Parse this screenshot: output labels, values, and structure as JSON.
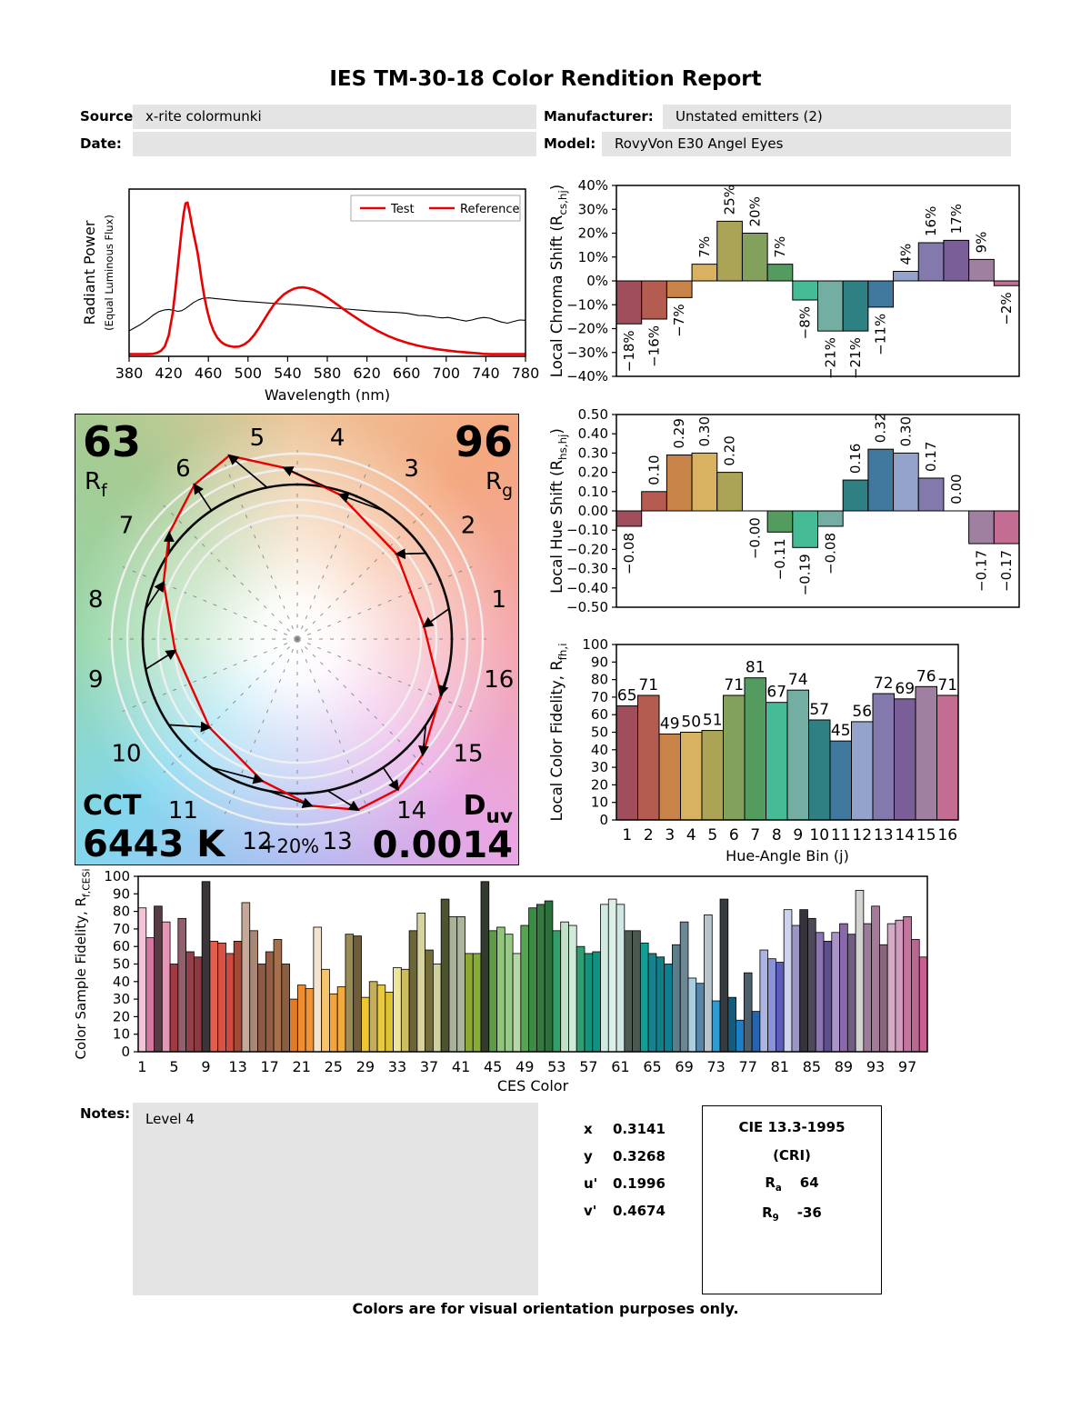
{
  "title": "IES TM-30-18 Color Rendition Report",
  "header": {
    "source_label": "Source:",
    "source_value": "x-rite colormunki",
    "manufacturer_label": "Manufacturer:",
    "manufacturer_value": "Unstated emitters (2)",
    "date_label": "Date:",
    "date_value": "",
    "model_label": "Model:",
    "model_value": "RovyVon E30 Angel Eyes"
  },
  "notes": {
    "label": "Notes:",
    "value": "Level 4"
  },
  "chromaticity": {
    "rows": [
      {
        "label": "x",
        "value": "0.3141"
      },
      {
        "label": "y",
        "value": "0.3268"
      },
      {
        "label": "u'",
        "value": "0.1996"
      },
      {
        "label": "v'",
        "value": "0.4674"
      }
    ]
  },
  "cri": {
    "title": "CIE 13.3-1995",
    "subtitle": "(CRI)",
    "ra": {
      "sym": "R",
      "sub": "a",
      "value": "64"
    },
    "r9": {
      "sym": "R",
      "sub": "9",
      "value": "-36"
    }
  },
  "footer": "Colors are for visual orientation purposes only.",
  "accent_red": "#e90000",
  "hue_bin_colors": [
    "#a14e5c",
    "#b55c50",
    "#c78348",
    "#d9b261",
    "#aba355",
    "#82a15c",
    "#549b60",
    "#47bb95",
    "#74ada2",
    "#2f8082",
    "#41789e",
    "#93a3cc",
    "#8379ad",
    "#7a5e98",
    "#a080a0",
    "#c46d92"
  ],
  "cvg": {
    "rf": {
      "value": "63",
      "sym": "R",
      "sub": "f"
    },
    "rg": {
      "value": "96",
      "sym": "R",
      "sub": "g"
    },
    "cct": {
      "label": "CCT",
      "value": "6443 K"
    },
    "duv": {
      "sym": "D",
      "sub": "uv",
      "value": "0.0014"
    },
    "ring_label": "+20%",
    "bin_labels": [
      "1",
      "2",
      "3",
      "4",
      "5",
      "6",
      "7",
      "8",
      "9",
      "10",
      "11",
      "12",
      "13",
      "14",
      "15",
      "16"
    ]
  },
  "chart_data": [
    {
      "id": "spd",
      "type": "line",
      "xlabel": "Wavelength (nm)",
      "ylabel": "Radiant Power",
      "ylabel2": "(Equal Luminous Flux)",
      "xlim": [
        380,
        780
      ],
      "ylim": [
        0,
        1
      ],
      "xticks": [
        380,
        420,
        460,
        500,
        540,
        580,
        620,
        660,
        700,
        740,
        780
      ],
      "grid": false,
      "legend_position": "top-right",
      "legend": [
        {
          "label": "Test",
          "text_color": "#e90000",
          "line_color": "#e90000"
        },
        {
          "label": "Reference",
          "text_color": "#000000",
          "line_color": "#e90000"
        }
      ],
      "series": [
        {
          "name": "Test",
          "color": "#e90000",
          "width": 2.6,
          "points": [
            [
              380,
              0.002
            ],
            [
              398,
              0.002
            ],
            [
              404,
              0.004
            ],
            [
              408,
              0.01
            ],
            [
              412,
              0.022
            ],
            [
              416,
              0.05
            ],
            [
              420,
              0.12
            ],
            [
              424,
              0.26
            ],
            [
              427,
              0.42
            ],
            [
              430,
              0.6
            ],
            [
              433,
              0.78
            ],
            [
              435,
              0.88
            ],
            [
              437,
              0.945
            ],
            [
              439,
              0.95
            ],
            [
              441,
              0.89
            ],
            [
              443,
              0.82
            ],
            [
              445,
              0.76
            ],
            [
              447,
              0.7
            ],
            [
              449,
              0.64
            ],
            [
              451,
              0.56
            ],
            [
              453,
              0.47
            ],
            [
              456,
              0.36
            ],
            [
              459,
              0.27
            ],
            [
              462,
              0.2
            ],
            [
              465,
              0.15
            ],
            [
              469,
              0.105
            ],
            [
              473,
              0.077
            ],
            [
              477,
              0.062
            ],
            [
              481,
              0.053
            ],
            [
              486,
              0.048
            ],
            [
              491,
              0.05
            ],
            [
              496,
              0.062
            ],
            [
              501,
              0.085
            ],
            [
              506,
              0.12
            ],
            [
              511,
              0.165
            ],
            [
              516,
              0.215
            ],
            [
              521,
              0.265
            ],
            [
              526,
              0.31
            ],
            [
              531,
              0.345
            ],
            [
              536,
              0.375
            ],
            [
              541,
              0.395
            ],
            [
              546,
              0.41
            ],
            [
              551,
              0.418
            ],
            [
              556,
              0.42
            ],
            [
              561,
              0.415
            ],
            [
              566,
              0.405
            ],
            [
              571,
              0.39
            ],
            [
              576,
              0.372
            ],
            [
              581,
              0.352
            ],
            [
              586,
              0.33
            ],
            [
              591,
              0.308
            ],
            [
              596,
              0.285
            ],
            [
              601,
              0.263
            ],
            [
              611,
              0.222
            ],
            [
              621,
              0.182
            ],
            [
              631,
              0.147
            ],
            [
              641,
              0.117
            ],
            [
              651,
              0.092
            ],
            [
              661,
              0.072
            ],
            [
              671,
              0.056
            ],
            [
              681,
              0.043
            ],
            [
              691,
              0.033
            ],
            [
              701,
              0.025
            ],
            [
              711,
              0.018
            ],
            [
              721,
              0.013
            ],
            [
              731,
              0.008
            ],
            [
              738,
              0.004
            ],
            [
              745,
              0.002
            ],
            [
              780,
              0.002
            ]
          ]
        },
        {
          "name": "Reference",
          "color": "#000000",
          "width": 1.1,
          "points": [
            [
              380,
              0.148
            ],
            [
              386,
              0.168
            ],
            [
              392,
              0.19
            ],
            [
              398,
              0.215
            ],
            [
              404,
              0.245
            ],
            [
              410,
              0.268
            ],
            [
              415,
              0.278
            ],
            [
              420,
              0.282
            ],
            [
              425,
              0.276
            ],
            [
              429,
              0.27
            ],
            [
              433,
              0.274
            ],
            [
              437,
              0.288
            ],
            [
              441,
              0.306
            ],
            [
              445,
              0.325
            ],
            [
              450,
              0.342
            ],
            [
              455,
              0.352
            ],
            [
              461,
              0.354
            ],
            [
              467,
              0.35
            ],
            [
              473,
              0.346
            ],
            [
              480,
              0.342
            ],
            [
              490,
              0.336
            ],
            [
              500,
              0.331
            ],
            [
              510,
              0.327
            ],
            [
              520,
              0.322
            ],
            [
              530,
              0.318
            ],
            [
              540,
              0.314
            ],
            [
              550,
              0.31
            ],
            [
              560,
              0.305
            ],
            [
              570,
              0.3
            ],
            [
              580,
              0.294
            ],
            [
              590,
              0.289
            ],
            [
              600,
              0.284
            ],
            [
              610,
              0.279
            ],
            [
              620,
              0.274
            ],
            [
              630,
              0.269
            ],
            [
              640,
              0.266
            ],
            [
              650,
              0.263
            ],
            [
              660,
              0.258
            ],
            [
              666,
              0.251
            ],
            [
              672,
              0.244
            ],
            [
              678,
              0.243
            ],
            [
              684,
              0.24
            ],
            [
              690,
              0.233
            ],
            [
              696,
              0.229
            ],
            [
              702,
              0.232
            ],
            [
              708,
              0.224
            ],
            [
              714,
              0.216
            ],
            [
              720,
              0.209
            ],
            [
              726,
              0.216
            ],
            [
              732,
              0.226
            ],
            [
              738,
              0.232
            ],
            [
              744,
              0.227
            ],
            [
              750,
              0.214
            ],
            [
              756,
              0.203
            ],
            [
              762,
              0.196
            ],
            [
              768,
              0.207
            ],
            [
              774,
              0.216
            ],
            [
              780,
              0.214
            ]
          ]
        }
      ]
    },
    {
      "id": "chroma_shift",
      "type": "bar",
      "ylabel_parts": [
        {
          "t": "Local Chroma Shift (R"
        },
        {
          "t": "cs,hj",
          "sub": true
        },
        {
          "t": ")"
        }
      ],
      "ylim": [
        -40,
        40
      ],
      "yticks": [
        40,
        30,
        20,
        10,
        0,
        -10,
        -20,
        -30,
        -40
      ],
      "ytick_labels": [
        "40%",
        "30%",
        "20%",
        "10%",
        "0%",
        "−10%",
        "−20%",
        "−30%",
        "−40%"
      ],
      "values": [
        -18,
        -16,
        -7,
        7,
        25,
        20,
        7,
        -8,
        -21,
        -21,
        -11,
        4,
        16,
        17,
        9,
        -2
      ],
      "labels": [
        "−18%",
        "−16%",
        "−7%",
        "7%",
        "25%",
        "20%",
        "7%",
        "−8%",
        "−21%",
        "−21%",
        "−11%",
        "4%",
        "16%",
        "17%",
        "9%",
        "−2%"
      ],
      "rotated_labels": true
    },
    {
      "id": "hue_shift",
      "type": "bar",
      "ylabel_parts": [
        {
          "t": "Local Hue Shift (R"
        },
        {
          "t": "hs,hj",
          "sub": true
        },
        {
          "t": ")"
        }
      ],
      "ylim": [
        -0.5,
        0.5
      ],
      "yticks": [
        0.5,
        0.4,
        0.3,
        0.2,
        0.1,
        0,
        -0.1,
        -0.2,
        -0.3,
        -0.4,
        -0.5
      ],
      "ytick_labels": [
        "0.50",
        "0.40",
        "0.30",
        "0.20",
        "0.10",
        "0.00",
        "−0.10",
        "−0.20",
        "−0.30",
        "−0.40",
        "−0.50"
      ],
      "values": [
        -0.08,
        0.1,
        0.29,
        0.3,
        0.2,
        -0.001,
        -0.11,
        -0.19,
        -0.08,
        0.16,
        0.32,
        0.3,
        0.17,
        0.001,
        -0.17,
        -0.17
      ],
      "labels": [
        "−0.08",
        "0.10",
        "0.29",
        "0.30",
        "0.20",
        "−0.00",
        "−0.11",
        "−0.19",
        "−0.08",
        "0.16",
        "0.32",
        "0.30",
        "0.17",
        "0.00",
        "−0.17",
        "−0.17"
      ],
      "rotated_labels": true
    },
    {
      "id": "local_fidelity",
      "type": "bar",
      "xlabel": "Hue-Angle Bin (j)",
      "ylabel_parts": [
        {
          "t": "Local Color Fidelity, R"
        },
        {
          "t": "fh,i",
          "sub": true
        }
      ],
      "ylim": [
        0,
        100
      ],
      "yticks": [
        100,
        90,
        80,
        70,
        60,
        50,
        40,
        30,
        20,
        10,
        0
      ],
      "ytick_labels": [
        "100",
        "90",
        "80",
        "70",
        "60",
        "50",
        "40",
        "30",
        "20",
        "10",
        "0"
      ],
      "categories": [
        "1",
        "2",
        "3",
        "4",
        "5",
        "6",
        "7",
        "8",
        "9",
        "10",
        "11",
        "12",
        "13",
        "14",
        "15",
        "16"
      ],
      "values": [
        65,
        71,
        49,
        50,
        51,
        71,
        81,
        67,
        74,
        57,
        45,
        56,
        72,
        69,
        76,
        71
      ],
      "labels": [
        "65",
        "71",
        "49",
        "50",
        "51",
        "71",
        "81",
        "67",
        "74",
        "57",
        "45",
        "56",
        "72",
        "69",
        "76",
        "71"
      ],
      "rotated_labels": false
    },
    {
      "id": "ces",
      "type": "bar",
      "xlabel": "CES Color",
      "ylabel_parts": [
        {
          "t": "Color Sample Fidelity, R"
        },
        {
          "t": "f,CESi",
          "sub": true
        }
      ],
      "ylim": [
        0,
        100
      ],
      "yticks": [
        100,
        90,
        80,
        70,
        60,
        50,
        40,
        30,
        20,
        10,
        0
      ],
      "ytick_labels": [
        "100",
        "90",
        "80",
        "70",
        "60",
        "50",
        "40",
        "30",
        "20",
        "10",
        "0"
      ],
      "xticks": [
        1,
        5,
        9,
        13,
        17,
        21,
        25,
        29,
        33,
        37,
        41,
        45,
        49,
        53,
        57,
        61,
        65,
        69,
        73,
        77,
        81,
        85,
        89,
        93,
        97
      ],
      "values": [
        82,
        65,
        83,
        74,
        50,
        76,
        57,
        54,
        97,
        63,
        62,
        56,
        63,
        85,
        69,
        50,
        57,
        64,
        50,
        30,
        38,
        36,
        71,
        47,
        33,
        37,
        67,
        66,
        31,
        40,
        38,
        34,
        48,
        47,
        69,
        79,
        58,
        50,
        87,
        77,
        77,
        56,
        56,
        97,
        69,
        71,
        67,
        56,
        72,
        82,
        84,
        86,
        69,
        74,
        72,
        60,
        56,
        57,
        84,
        87,
        84,
        69,
        69,
        62,
        56,
        54,
        50,
        61,
        74,
        42,
        39,
        78,
        29,
        87,
        31,
        18,
        45,
        23,
        58,
        53,
        51,
        81,
        72,
        81,
        76,
        68,
        63,
        68,
        73,
        67,
        92,
        73,
        83,
        61,
        73,
        75,
        77,
        64,
        54
      ],
      "colors": [
        "#f4c3d7",
        "#d478a2",
        "#583c44",
        "#e795b4",
        "#a03b42",
        "#91606c",
        "#93404a",
        "#8c3a42",
        "#3b3439",
        "#e25e4d",
        "#da5244",
        "#d04a40",
        "#a04a3a",
        "#c5a898",
        "#aa8675",
        "#8c5b46",
        "#955e44",
        "#a5714d",
        "#8c5e41",
        "#e07c29",
        "#ef8e31",
        "#f09537",
        "#f3e4cf",
        "#f6c46b",
        "#f2a43b",
        "#f0aa3e",
        "#9b8b57",
        "#6f5d3b",
        "#eec532",
        "#c5ae57",
        "#e9c93f",
        "#ddc32f",
        "#eee59b",
        "#ccbd61",
        "#6b6537",
        "#d7d3a1",
        "#726c3b",
        "#d0d09d",
        "#4b5331",
        "#a9b197",
        "#aab59b",
        "#8ba933",
        "#85ac37",
        "#333a2f",
        "#5e9a49",
        "#90c57d",
        "#99c989",
        "#b7d7a7",
        "#58a457",
        "#3e8b47",
        "#357941",
        "#2d6f3d",
        "#30a067",
        "#c0e1c5",
        "#d0ead9",
        "#2f9f71",
        "#15927b",
        "#109281",
        "#d0eae1",
        "#deefe7",
        "#d0e8e3",
        "#4d5b53",
        "#4b5951",
        "#0e9f97",
        "#18818b",
        "#107f87",
        "#0b8093",
        "#5d7e89",
        "#6c8895",
        "#a9cfdf",
        "#5686a9",
        "#b9c5cd",
        "#309bd1",
        "#353b41",
        "#155b7b",
        "#1c7fc3",
        "#4c5f6c",
        "#2664af",
        "#abb5e1",
        "#8993d5",
        "#5b5db9",
        "#cdd3ef",
        "#9b95c3",
        "#36333d",
        "#4f4959",
        "#8b75af",
        "#5d4e91",
        "#aa93c7",
        "#8969ab",
        "#705d81",
        "#d3d3cf",
        "#9b7b97",
        "#a47c99",
        "#87657b",
        "#d5aac5",
        "#d09dbe",
        "#c3749f",
        "#b96791",
        "#c8608f"
      ]
    }
  ]
}
